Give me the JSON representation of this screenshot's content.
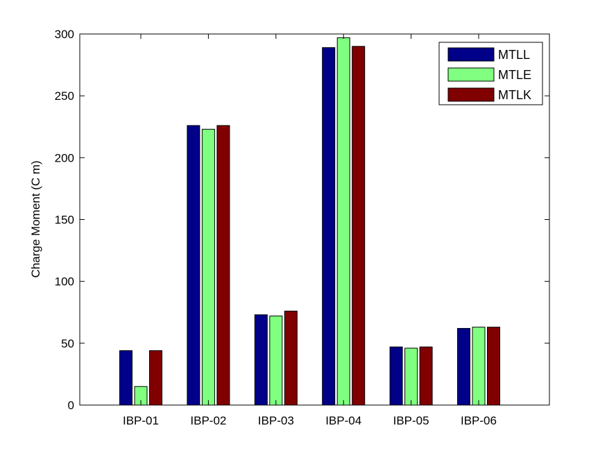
{
  "chart_data": {
    "type": "bar",
    "title": "",
    "xlabel": "",
    "ylabel": "Charge Moment (C m)",
    "categories": [
      "IBP-01",
      "IBP-02",
      "IBP-03",
      "IBP-04",
      "IBP-05",
      "IBP-06"
    ],
    "series": [
      {
        "name": "MTLL",
        "color": "#000088",
        "values": [
          44,
          226,
          73,
          289,
          47,
          62
        ]
      },
      {
        "name": "MTLE",
        "color": "#80ff80",
        "values": [
          15,
          223,
          72,
          297,
          46,
          63
        ]
      },
      {
        "name": "MTLK",
        "color": "#800000",
        "values": [
          44,
          226,
          76,
          290,
          47,
          63
        ]
      }
    ],
    "ylim": [
      0,
      300
    ],
    "yticks": [
      0,
      50,
      100,
      150,
      200,
      250,
      300
    ],
    "grid": false,
    "legend_position": "top-right"
  }
}
